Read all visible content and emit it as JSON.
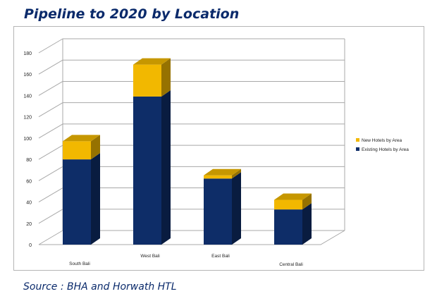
{
  "title": "Pipeline to 2020 by Location",
  "source": "Source : BHA and Horwath HTL",
  "chart_data": {
    "type": "bar",
    "stacked": true,
    "three_d": true,
    "categories": [
      "South Bali",
      "West Bali",
      "East Bali",
      "Central Bali"
    ],
    "series": [
      {
        "name": "Existing Hotels by Area",
        "values": [
          80,
          139,
          62,
          33
        ],
        "color": "#0e2d68"
      },
      {
        "name": "New Hotels by Area",
        "values": [
          17,
          30,
          3,
          9
        ],
        "color": "#f2b800"
      }
    ],
    "ylim": [
      0,
      180
    ],
    "yticks": [
      0,
      20,
      40,
      60,
      80,
      100,
      120,
      140,
      160,
      180
    ],
    "grid": true,
    "legend_position": "right"
  }
}
